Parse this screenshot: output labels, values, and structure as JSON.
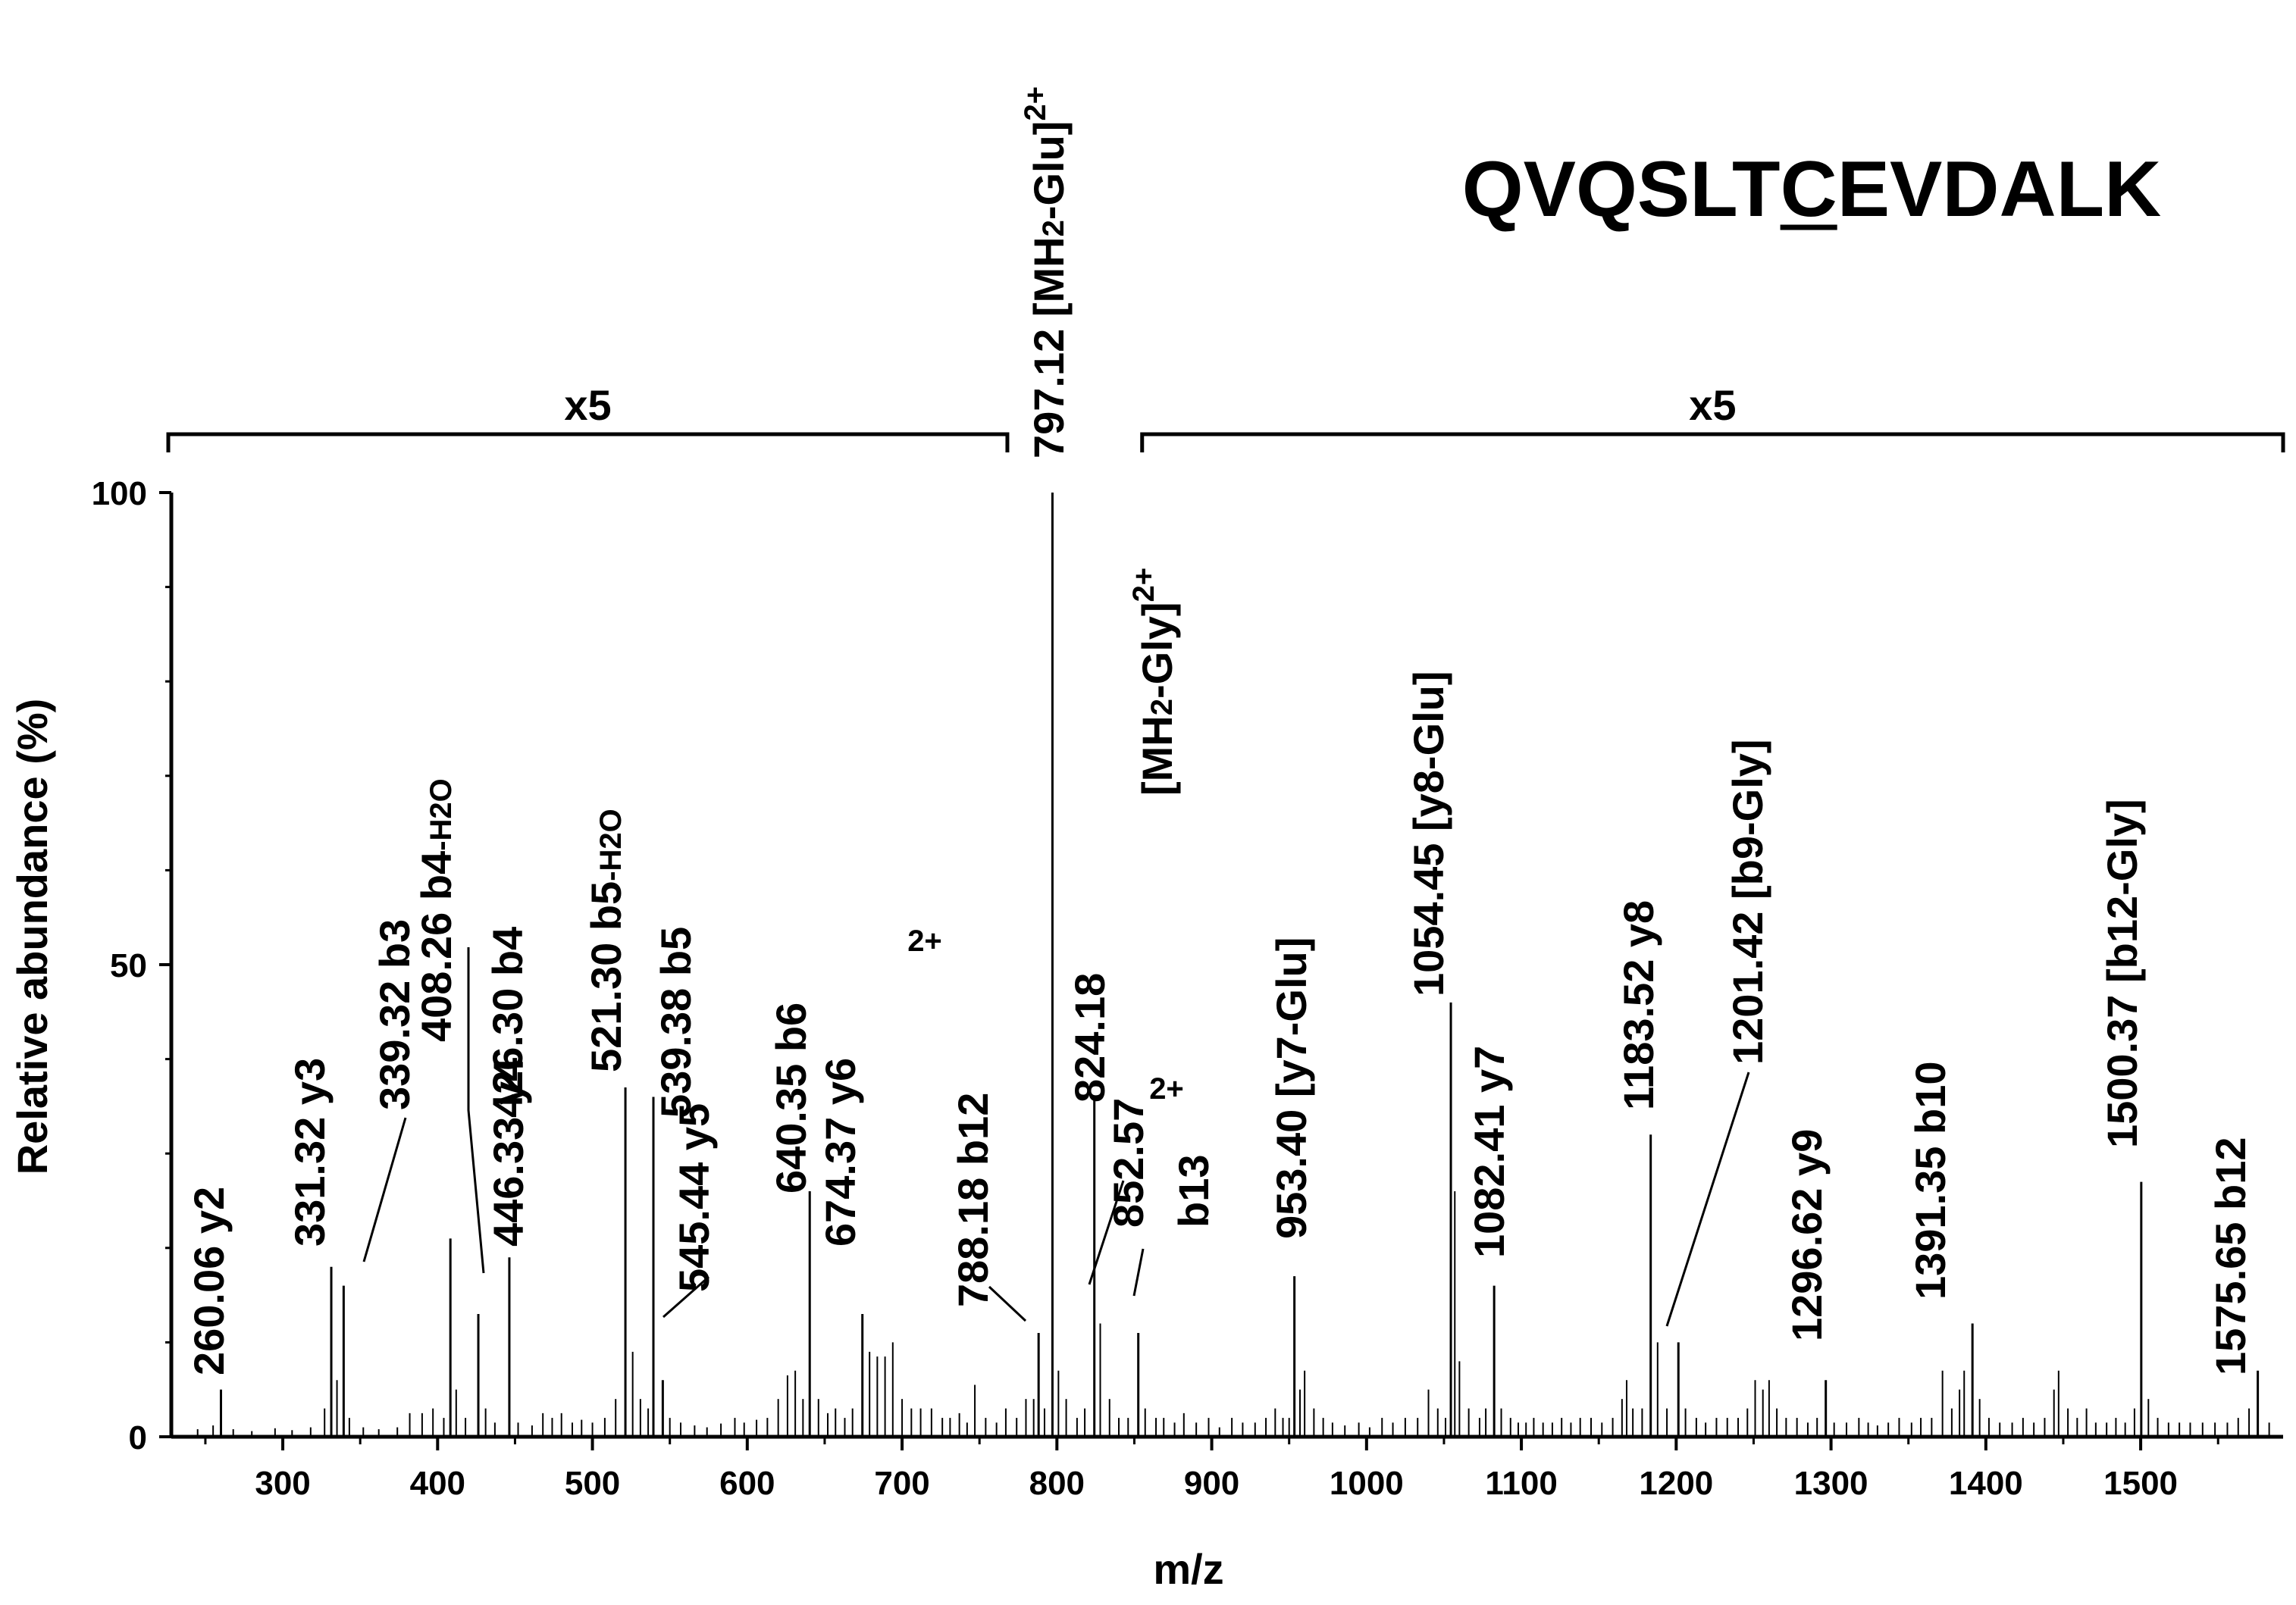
{
  "chart_data": {
    "type": "bar",
    "subtype": "mass-spectrum (stick plot)",
    "title": "QVQSLTCEVDALK",
    "title_underlined_residue": "C",
    "xlabel": "m/z",
    "ylabel": "Relative abundance (%)",
    "xlim": [
      228,
      1592
    ],
    "ylim": [
      0,
      100
    ],
    "xticks": [
      300,
      400,
      500,
      600,
      700,
      800,
      900,
      1000,
      1100,
      1200,
      1300,
      1400,
      1500
    ],
    "yticks": [
      0,
      50,
      100
    ],
    "scale_factors": [
      {
        "label": "x5",
        "range": [
          228,
          768
        ]
      },
      {
        "label": "x5",
        "range": [
          857,
          1592
        ]
      }
    ],
    "annotated_peaks": [
      {
        "mz": 260.06,
        "intensity": 5,
        "label": "260.06 y2"
      },
      {
        "mz": 331.32,
        "intensity": 18,
        "label": "331.32 y3"
      },
      {
        "mz": 339.32,
        "intensity": 16,
        "label": "339.32 b3"
      },
      {
        "mz": 408.26,
        "intensity": 21,
        "label": "408.26 b4-H2O"
      },
      {
        "mz": 426.3,
        "intensity": 13,
        "label": "426.30 b4"
      },
      {
        "mz": 446.33,
        "intensity": 19,
        "label": "446.33 y4"
      },
      {
        "mz": 521.3,
        "intensity": 37,
        "label": "521.30 b5-H2O"
      },
      {
        "mz": 539.38,
        "intensity": 36,
        "label": "539.38 b5"
      },
      {
        "mz": 545.44,
        "intensity": 6,
        "label": "545.44 y5"
      },
      {
        "mz": 640.35,
        "intensity": 26,
        "label": "640.35 b6"
      },
      {
        "mz": 674.37,
        "intensity": 13,
        "label": "674.37 y6"
      },
      {
        "mz": 788.18,
        "intensity": 11,
        "label": "788.18 b12",
        "charge": "2+"
      },
      {
        "mz": 797.12,
        "intensity": 100,
        "label": "797.12",
        "ion": "[MH2-Glu]",
        "charge": "2+"
      },
      {
        "mz": 824.18,
        "intensity": 36,
        "label": "824.18",
        "ion": "[MH2-Gly]",
        "charge": "2+"
      },
      {
        "mz": 852.57,
        "intensity": 11,
        "label": "852.57",
        "ion": "b13",
        "charge": "2+"
      },
      {
        "mz": 953.4,
        "intensity": 17,
        "label": "953.40",
        "ion": "[y7-Glu]"
      },
      {
        "mz": 1054.45,
        "intensity": 46,
        "label": "1054.45",
        "ion": "[y8-Glu]"
      },
      {
        "mz": 1082.41,
        "intensity": 16,
        "label": "1082.41 y7"
      },
      {
        "mz": 1183.52,
        "intensity": 32,
        "label": "1183.52 y8"
      },
      {
        "mz": 1201.42,
        "intensity": 10,
        "label": "1201.42",
        "ion": "[b9-Gly]"
      },
      {
        "mz": 1296.62,
        "intensity": 6,
        "label": "1296.62 y9"
      },
      {
        "mz": 1391.35,
        "intensity": 12,
        "label": "1391.35 b10"
      },
      {
        "mz": 1500.37,
        "intensity": 27,
        "label": "1500.37",
        "ion": "[b12-Gly]"
      },
      {
        "mz": 1575.65,
        "intensity": 7,
        "label": "1575.65 b12"
      }
    ],
    "minor_peaks": [
      [
        245,
        0.8
      ],
      [
        255,
        1.2
      ],
      [
        268,
        0.8
      ],
      [
        280,
        0.6
      ],
      [
        295,
        0.9
      ],
      [
        306,
        0.7
      ],
      [
        318,
        1
      ],
      [
        327,
        3
      ],
      [
        335,
        6
      ],
      [
        343,
        2
      ],
      [
        352,
        1
      ],
      [
        362,
        0.8
      ],
      [
        374,
        1
      ],
      [
        382,
        2.5
      ],
      [
        390,
        2.5
      ],
      [
        397,
        3
      ],
      [
        404,
        2
      ],
      [
        412,
        5
      ],
      [
        418,
        2
      ],
      [
        431,
        3
      ],
      [
        437,
        1.5
      ],
      [
        452,
        1.5
      ],
      [
        461,
        1.2
      ],
      [
        468,
        2.5
      ],
      [
        474,
        2
      ],
      [
        480,
        2.5
      ],
      [
        487,
        1.5
      ],
      [
        493,
        1.8
      ],
      [
        500,
        1.5
      ],
      [
        508,
        2
      ],
      [
        515,
        4
      ],
      [
        526,
        9
      ],
      [
        531,
        4
      ],
      [
        536,
        3
      ],
      [
        550,
        2
      ],
      [
        557,
        1.5
      ],
      [
        566,
        1.2
      ],
      [
        574,
        1
      ],
      [
        583,
        1.4
      ],
      [
        592,
        2
      ],
      [
        598,
        1.5
      ],
      [
        606,
        1.8
      ],
      [
        613,
        2
      ],
      [
        620,
        4
      ],
      [
        626,
        6.5
      ],
      [
        631,
        7
      ],
      [
        636,
        4
      ],
      [
        646,
        4
      ],
      [
        652,
        2.5
      ],
      [
        657,
        3
      ],
      [
        663,
        2
      ],
      [
        668,
        3
      ],
      [
        679,
        9
      ],
      [
        684,
        8.5
      ],
      [
        689,
        8.5
      ],
      [
        694,
        10
      ],
      [
        700,
        4
      ],
      [
        706,
        3
      ],
      [
        712,
        3
      ],
      [
        719,
        3
      ],
      [
        726,
        2
      ],
      [
        731,
        2
      ],
      [
        737,
        2.5
      ],
      [
        742,
        1.5
      ],
      [
        747,
        5.5
      ],
      [
        754,
        2
      ],
      [
        761,
        1.5
      ],
      [
        767,
        3
      ],
      [
        774,
        2
      ],
      [
        780,
        4
      ],
      [
        785,
        4
      ],
      [
        792,
        3
      ],
      [
        801,
        7
      ],
      [
        806,
        4
      ],
      [
        813,
        2
      ],
      [
        818,
        3
      ],
      [
        828,
        12
      ],
      [
        834,
        4
      ],
      [
        840,
        2
      ],
      [
        846,
        2
      ],
      [
        857,
        3
      ],
      [
        864,
        2
      ],
      [
        869,
        2
      ],
      [
        876,
        1.5
      ],
      [
        882,
        2.5
      ],
      [
        890,
        1.5
      ],
      [
        898,
        2
      ],
      [
        905,
        1
      ],
      [
        913,
        2
      ],
      [
        920,
        1.5
      ],
      [
        928,
        1.5
      ],
      [
        935,
        2
      ],
      [
        941,
        3
      ],
      [
        946,
        2
      ],
      [
        950,
        2
      ],
      [
        957,
        5
      ],
      [
        960,
        7
      ],
      [
        966,
        3
      ],
      [
        972,
        2
      ],
      [
        978,
        1.5
      ],
      [
        986,
        1.2
      ],
      [
        995,
        1.5
      ],
      [
        1002,
        1
      ],
      [
        1010,
        2
      ],
      [
        1017,
        1.5
      ],
      [
        1025,
        2
      ],
      [
        1033,
        2
      ],
      [
        1040,
        5
      ],
      [
        1046,
        3
      ],
      [
        1051,
        2
      ],
      [
        1057,
        26
      ],
      [
        1060,
        8
      ],
      [
        1066,
        3
      ],
      [
        1073,
        2
      ],
      [
        1077,
        3
      ],
      [
        1087,
        3
      ],
      [
        1093,
        2
      ],
      [
        1098,
        1.5
      ],
      [
        1103,
        1.5
      ],
      [
        1108,
        2
      ],
      [
        1114,
        1.5
      ],
      [
        1120,
        1.5
      ],
      [
        1126,
        2
      ],
      [
        1132,
        1.5
      ],
      [
        1138,
        2
      ],
      [
        1145,
        2
      ],
      [
        1152,
        1.5
      ],
      [
        1159,
        2
      ],
      [
        1165,
        4
      ],
      [
        1168,
        6
      ],
      [
        1172,
        3
      ],
      [
        1178,
        3
      ],
      [
        1188,
        10
      ],
      [
        1194,
        3
      ],
      [
        1206,
        3
      ],
      [
        1213,
        2
      ],
      [
        1219,
        1.5
      ],
      [
        1226,
        2
      ],
      [
        1233,
        2
      ],
      [
        1240,
        2
      ],
      [
        1246,
        3
      ],
      [
        1251,
        6
      ],
      [
        1256,
        5
      ],
      [
        1260,
        6
      ],
      [
        1265,
        3
      ],
      [
        1271,
        2
      ],
      [
        1278,
        2
      ],
      [
        1285,
        1.5
      ],
      [
        1291,
        2
      ],
      [
        1302,
        1.5
      ],
      [
        1310,
        1.5
      ],
      [
        1318,
        2
      ],
      [
        1324,
        1.5
      ],
      [
        1330,
        1.2
      ],
      [
        1337,
        1.5
      ],
      [
        1344,
        2
      ],
      [
        1352,
        1.5
      ],
      [
        1358,
        2
      ],
      [
        1365,
        2
      ],
      [
        1372,
        7
      ],
      [
        1378,
        3
      ],
      [
        1383,
        5
      ],
      [
        1386,
        7
      ],
      [
        1396,
        4
      ],
      [
        1402,
        2
      ],
      [
        1409,
        1.5
      ],
      [
        1417,
        1.5
      ],
      [
        1424,
        2
      ],
      [
        1431,
        1.5
      ],
      [
        1438,
        2
      ],
      [
        1444,
        5
      ],
      [
        1447,
        7
      ],
      [
        1453,
        3
      ],
      [
        1459,
        2
      ],
      [
        1465,
        3
      ],
      [
        1471,
        1.5
      ],
      [
        1478,
        1.5
      ],
      [
        1484,
        2
      ],
      [
        1490,
        1.5
      ],
      [
        1496,
        3
      ],
      [
        1505,
        4
      ],
      [
        1511,
        2
      ],
      [
        1518,
        1.5
      ],
      [
        1525,
        1.5
      ],
      [
        1532,
        1.5
      ],
      [
        1540,
        1.5
      ],
      [
        1548,
        1.5
      ],
      [
        1556,
        1.5
      ],
      [
        1563,
        2
      ],
      [
        1570,
        3
      ],
      [
        1583,
        1.5
      ]
    ]
  }
}
